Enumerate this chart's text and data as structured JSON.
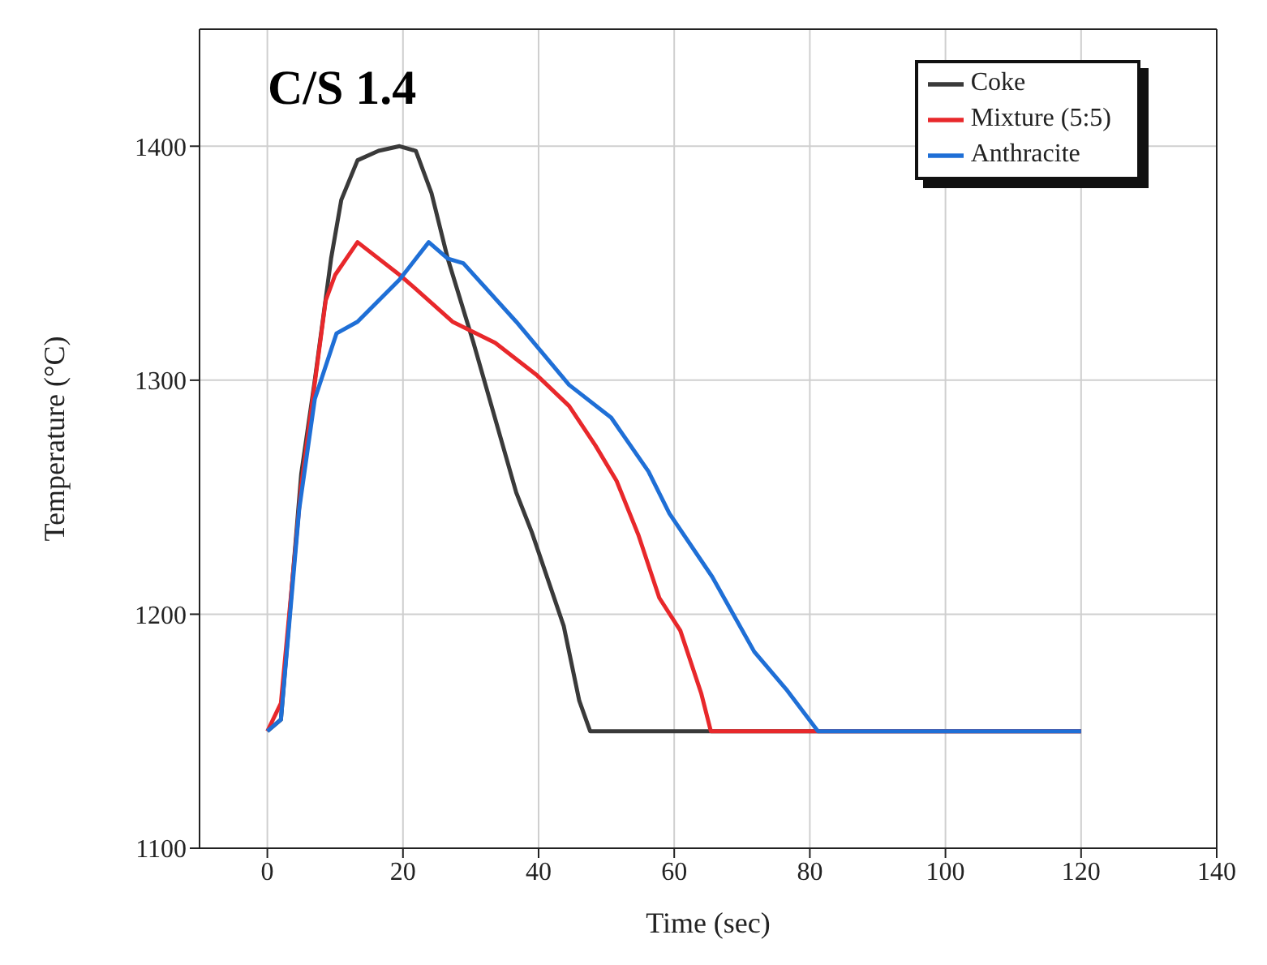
{
  "chart_data": {
    "type": "line",
    "title": "C/S 1.4",
    "xlabel": "Time (sec)",
    "ylabel": "Temperature (°C)",
    "xlim": [
      -10,
      140
    ],
    "xticks": [
      0,
      20,
      40,
      60,
      80,
      100,
      120,
      140
    ],
    "ylim": [
      1100,
      1450
    ],
    "yticks": [
      1100,
      1200,
      1300,
      1400
    ],
    "grid": true,
    "legend": "top right",
    "marker": "none",
    "line_style": "solid",
    "series": [
      {
        "name": "Coke",
        "color": "#3a3a3a",
        "x": [
          0,
          2,
          5,
          7,
          9.4,
          10.9,
          13.3,
          16.4,
          19.5,
          21.9,
          24.2,
          26.6,
          30.4,
          36.7,
          39,
          43.7,
          46,
          47.6,
          120
        ],
        "values": [
          1150,
          1155,
          1260,
          1300,
          1352,
          1377,
          1394,
          1398,
          1400,
          1398,
          1380,
          1352,
          1316,
          1252,
          1235,
          1195,
          1163,
          1150,
          1150
        ]
      },
      {
        "name": "Mixture (5:5)",
        "color": "#e8282b",
        "x": [
          0,
          2,
          5,
          8.6,
          10,
          13.3,
          19.5,
          21.9,
          27.3,
          33.6,
          39.8,
          44.5,
          48.4,
          51.5,
          54.7,
          57.8,
          60.9,
          64,
          65.4,
          120
        ],
        "values": [
          1150,
          1162,
          1255,
          1334,
          1345,
          1359,
          1345,
          1339,
          1325,
          1316,
          1302,
          1289,
          1272,
          1257,
          1234,
          1207,
          1193,
          1166,
          1150,
          1150
        ]
      },
      {
        "name": "Anthracite",
        "color": "#1f6fd6",
        "x": [
          0,
          2,
          4.7,
          7,
          10.2,
          13.3,
          19.5,
          23.8,
          26.6,
          28.9,
          36.7,
          44.5,
          50.7,
          56.2,
          59.3,
          65.6,
          71.8,
          76.5,
          81.2,
          120
        ],
        "values": [
          1150,
          1155,
          1245,
          1292,
          1320,
          1325,
          1343,
          1359,
          1352,
          1350,
          1325,
          1298,
          1284,
          1261,
          1243,
          1216,
          1184,
          1168,
          1150,
          1150
        ]
      }
    ]
  }
}
